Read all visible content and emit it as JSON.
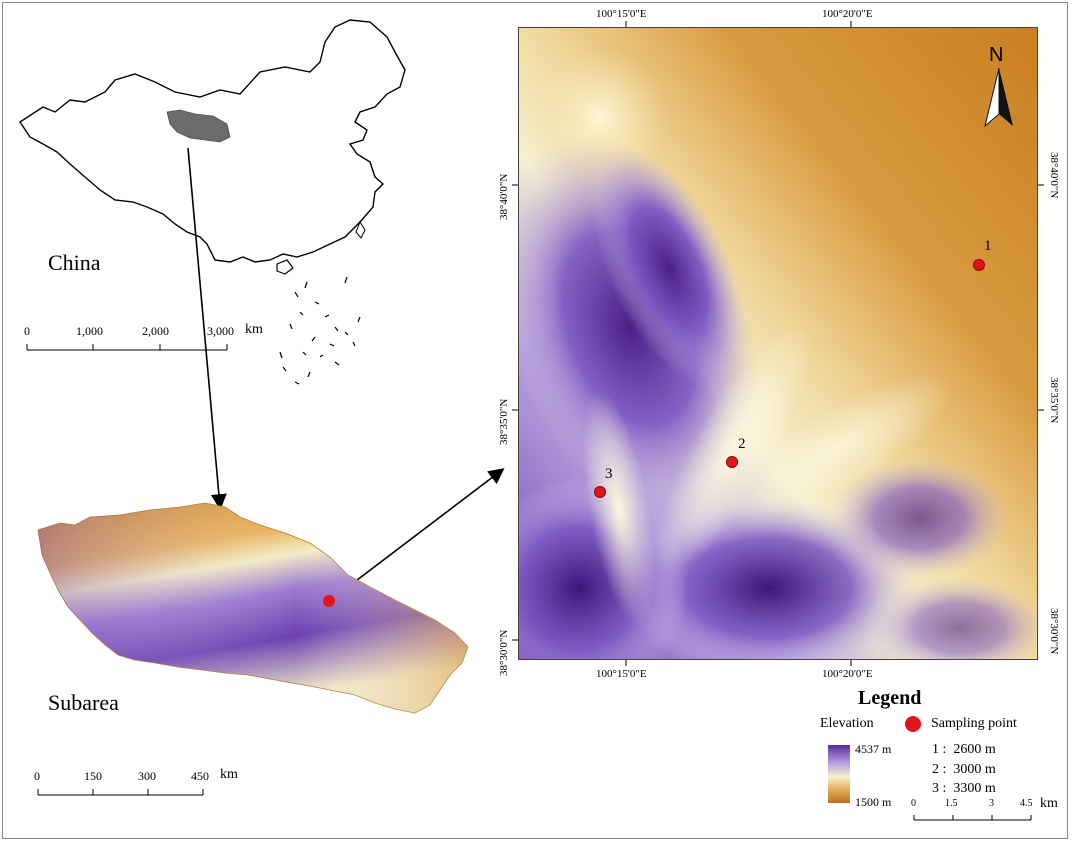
{
  "china_map": {
    "label": "China",
    "scale": {
      "ticks": [
        "0",
        "1,000",
        "2,000",
        "3,000"
      ],
      "unit": "km"
    }
  },
  "subarea_map": {
    "label": "Subarea",
    "scale": {
      "ticks": [
        "0",
        "150",
        "300",
        "450"
      ],
      "unit": "km"
    }
  },
  "detail_map": {
    "north_arrow": "N",
    "top_coords": [
      "100°15'0\"E",
      "100°20'0\"E"
    ],
    "bottom_coords": [
      "100°15'0\"E",
      "100°20'0\"E"
    ],
    "left_coords": [
      "38°40'0\"N",
      "38°35'0\"N",
      "38°30'0\"N"
    ],
    "right_coords": [
      "38°40'0\"N",
      "38°35'0\"N",
      "38°30'0\"N"
    ],
    "points": [
      {
        "id": "1",
        "label": "1"
      },
      {
        "id": "2",
        "label": "2"
      },
      {
        "id": "3",
        "label": "3"
      }
    ]
  },
  "legend": {
    "title": "Legend",
    "elevation_label": "Elevation",
    "elevation_max": "4537 m",
    "elevation_min": "1500 m",
    "sampling_label": "Sampling point",
    "point_items": [
      "1 :  2600 m",
      "2 :  3000 m",
      "3 :  3300 m"
    ],
    "scale": {
      "ticks": [
        "0",
        "1.5",
        "3",
        "4.5"
      ],
      "unit": "km"
    }
  },
  "colors": {
    "high_elevation": "#5b2d9e",
    "mid_elevation": "#f3edc4",
    "low_elevation": "#cf8a2b",
    "sampling_point": "#e0141a",
    "study_area_highlight": "#6b6b6b"
  }
}
